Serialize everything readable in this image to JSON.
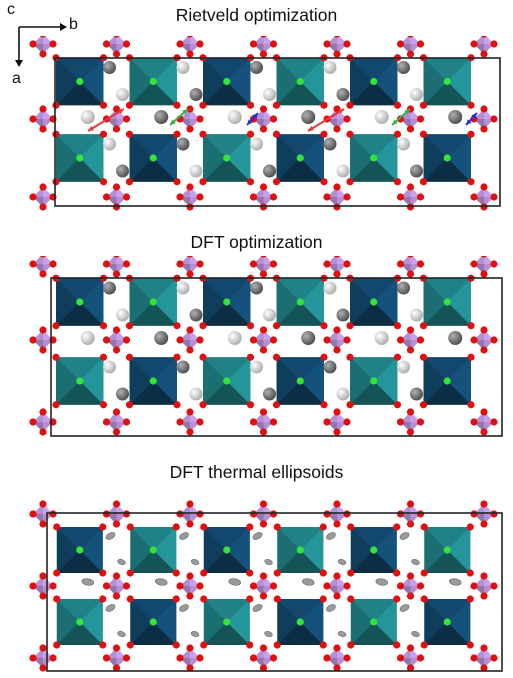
{
  "axes": {
    "vertical_label": "c",
    "horizontal_label": "b",
    "down_label": "a"
  },
  "panels": [
    {
      "title": "Rietveld optimization",
      "atom_style": "spheres",
      "shows_arrows": true
    },
    {
      "title": "DFT optimization",
      "atom_style": "spheres",
      "shows_arrows": false
    },
    {
      "title": "DFT thermal ellipsoids",
      "atom_style": "ellipsoids",
      "shows_arrows": false
    }
  ],
  "colors": {
    "octahedron_dark": "#0f3d5c",
    "octahedron_teal": "#1b6e72",
    "tetrahedron": "#b48fd4",
    "oxygen": "#e01010",
    "center_atom": "#33e633",
    "arrow_red": "#e83a3a",
    "arrow_green": "#38b24a",
    "arrow_blue": "#2630d8",
    "cell_outline": "#222222"
  }
}
